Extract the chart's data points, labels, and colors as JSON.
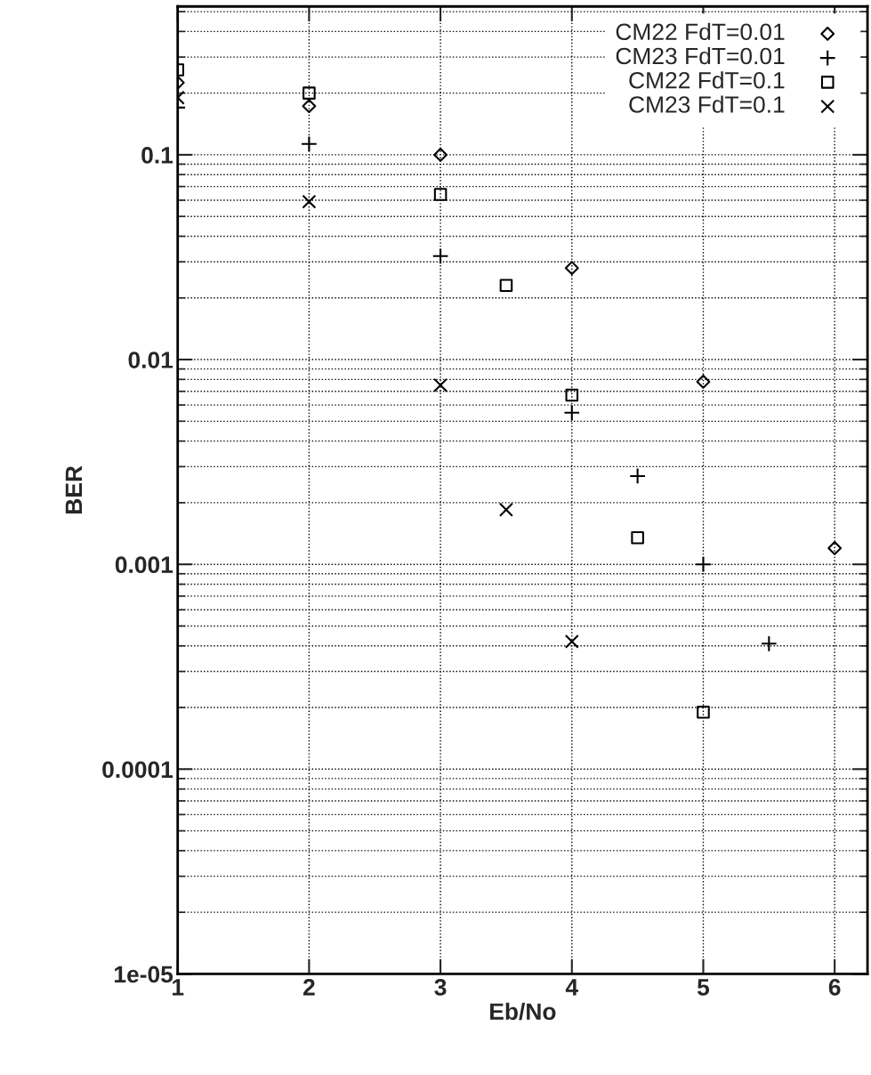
{
  "chart_data": {
    "type": "scatter",
    "xlabel": "Eb/No",
    "ylabel": "BER",
    "log": "y",
    "grid": true,
    "legend": "top right",
    "xlim": [
      1,
      6.25
    ],
    "xticks": [
      1,
      2,
      3,
      4,
      5,
      6
    ],
    "ylim": [
      1e-05,
      0.53
    ],
    "yticks": [
      {
        "value": 1e-05,
        "label": "1e-05"
      },
      {
        "value": 0.0001,
        "label": "0.0001"
      },
      {
        "value": 0.001,
        "label": "0.001"
      },
      {
        "value": 0.01,
        "label": "0.01"
      },
      {
        "value": 0.1,
        "label": "0.1"
      }
    ],
    "series": [
      {
        "name": "CM22 FdT=0.01",
        "color": "#000000",
        "marker": "diamond",
        "x": [
          1,
          2,
          3,
          4,
          5,
          6
        ],
        "values": [
          0.225,
          0.173,
          0.1,
          0.028,
          0.0078,
          0.0012
        ]
      },
      {
        "name": "CM23 FdT=0.01",
        "color": "#000000",
        "marker": "cross",
        "x": [
          1,
          2,
          3,
          4,
          4.5,
          5,
          5.5
        ],
        "values": [
          0.17,
          0.113,
          0.032,
          0.0055,
          0.0027,
          0.001,
          0.00041
        ]
      },
      {
        "name": "CM22 FdT=0.1",
        "color": "#000000",
        "marker": "square",
        "x": [
          1,
          2,
          3,
          3.5,
          4,
          4.5,
          5
        ],
        "values": [
          0.26,
          0.2,
          0.064,
          0.023,
          0.0067,
          0.00135,
          0.00019
        ]
      },
      {
        "name": "CM23 FdT=0.1",
        "color": "#000000",
        "marker": "x",
        "x": [
          1,
          2,
          3,
          3.5,
          4
        ],
        "values": [
          0.19,
          0.059,
          0.0075,
          0.00185,
          0.00042
        ]
      }
    ]
  }
}
